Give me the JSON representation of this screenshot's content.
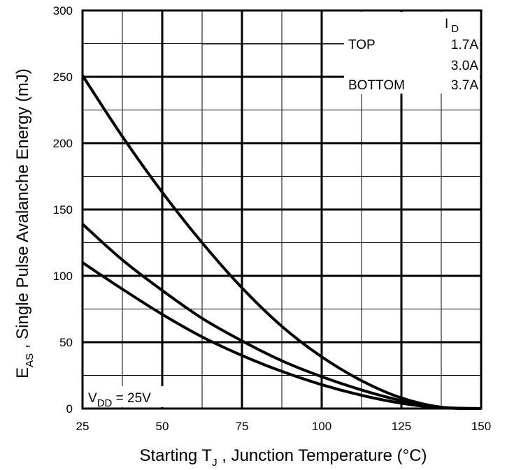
{
  "chart_data": {
    "type": "line",
    "xlabel_parts": {
      "pre": "Starting T",
      "sub": "J",
      "post": " , Junction Temperature (°C)"
    },
    "ylabel_parts": {
      "pre": "E",
      "sub": "AS",
      "post": " ,   Single Pulse Avalanche Energy (mJ)"
    },
    "xlim": [
      25,
      150
    ],
    "ylim": [
      0,
      300
    ],
    "xticks": [
      25,
      50,
      75,
      100,
      125,
      150
    ],
    "yticks": [
      0,
      50,
      100,
      150,
      200,
      250,
      300
    ],
    "grid": true,
    "legend": {
      "header_main": "I",
      "header_sub": "D",
      "rows": [
        {
          "label": "TOP",
          "value": "1.7A"
        },
        {
          "label": "",
          "value": "3.0A"
        },
        {
          "label": "BOTTOM",
          "value": "3.7A"
        }
      ],
      "position": "top-right"
    },
    "annotation": {
      "main": "V",
      "sub": "DD",
      "post": " = 25V"
    },
    "series": [
      {
        "x": [
          25,
          37.5,
          50,
          62.5,
          75,
          87.5,
          100,
          112.5,
          125,
          137.5,
          150
        ],
        "values": [
          251,
          205,
          163,
          125,
          91,
          62,
          39,
          21,
          8,
          1,
          0
        ]
      },
      {
        "x": [
          25,
          37.5,
          50,
          62.5,
          75,
          87.5,
          100,
          112.5,
          125,
          137.5,
          150
        ],
        "values": [
          139,
          112,
          89,
          68,
          51,
          36,
          24,
          14,
          6,
          1,
          0
        ]
      },
      {
        "x": [
          25,
          37.5,
          50,
          62.5,
          75,
          87.5,
          100,
          112.5,
          125,
          137.5,
          150
        ],
        "values": [
          110,
          90,
          71,
          54,
          40,
          28,
          18,
          10,
          4,
          0.5,
          0
        ]
      }
    ]
  }
}
